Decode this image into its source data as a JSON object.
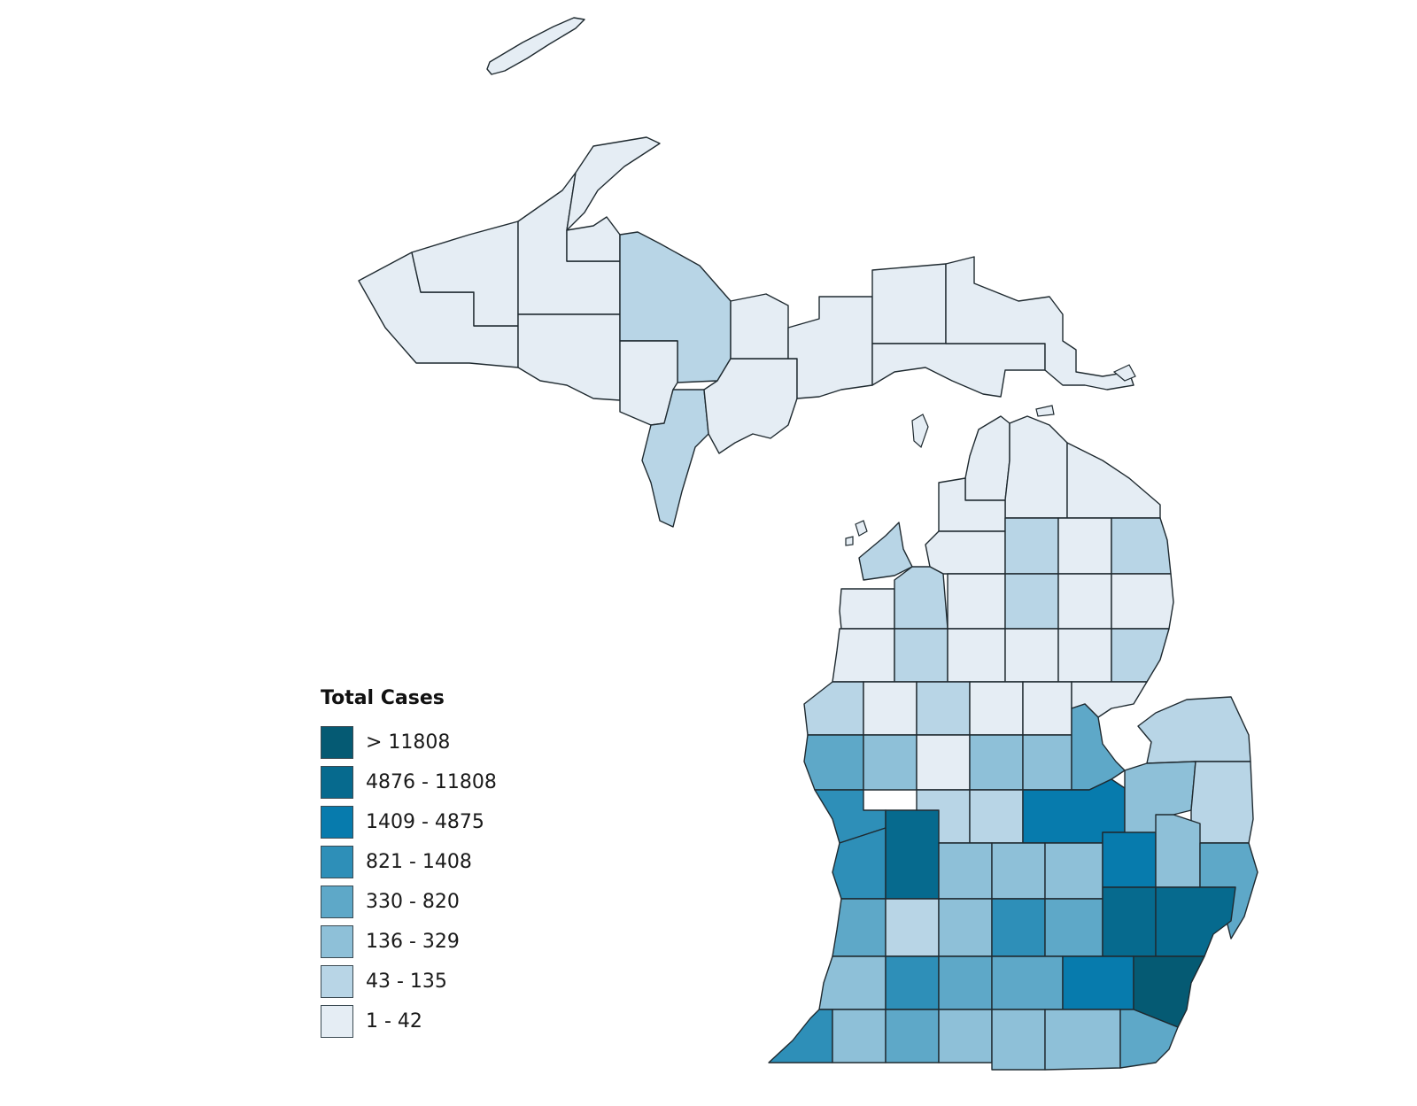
{
  "legend": {
    "title": "Total Cases",
    "classes": [
      {
        "label": "> 11808",
        "color": "#055a73"
      },
      {
        "label": "4876 - 11808",
        "color": "#066a8e"
      },
      {
        "label": "1409 - 4875",
        "color": "#077bad"
      },
      {
        "label": "821 - 1408",
        "color": "#2e8fb8"
      },
      {
        "label": "330 - 820",
        "color": "#5ea8c8"
      },
      {
        "label": "136 - 329",
        "color": "#8ec0d8"
      },
      {
        "label": "43 - 135",
        "color": "#b8d5e6"
      },
      {
        "label": "1 - 42",
        "color": "#e5edf4"
      }
    ]
  },
  "chart_data": {
    "type": "choropleth",
    "title": "Total Cases",
    "region": "Michigan counties",
    "classes": [
      "> 11808",
      "4876 - 11808",
      "1409 - 4875",
      "821 - 1408",
      "330 - 820",
      "136 - 329",
      "43 - 135",
      "1 - 42"
    ],
    "legend_position": "bottom-left"
  }
}
